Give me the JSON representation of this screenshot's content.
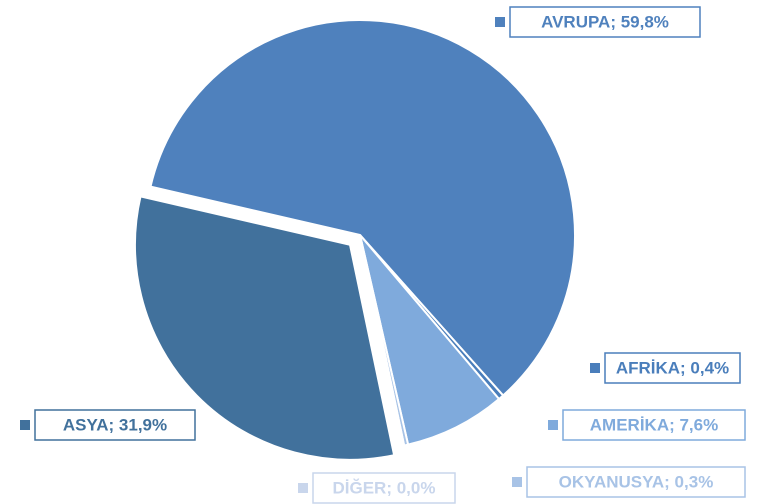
{
  "chart_data": {
    "type": "pie",
    "values": [
      59.8,
      0.4,
      7.6,
      0.3,
      0.0,
      31.9
    ],
    "value_labels": [
      "AVRUPA; 59,8%",
      "AFRİKA; 0,4%",
      "AMERİKA; 7,6%",
      "OKYANUSYA; 0,3%",
      "DİĞER; 0,0%",
      "ASYA; 31,9%"
    ],
    "colors": [
      "#4f81bd",
      "#4a7ebb",
      "#7faadc",
      "#a8c3e6",
      "#c9d6ec",
      "#41719c"
    ],
    "exploded": [
      false,
      false,
      false,
      false,
      false,
      true
    ]
  }
}
